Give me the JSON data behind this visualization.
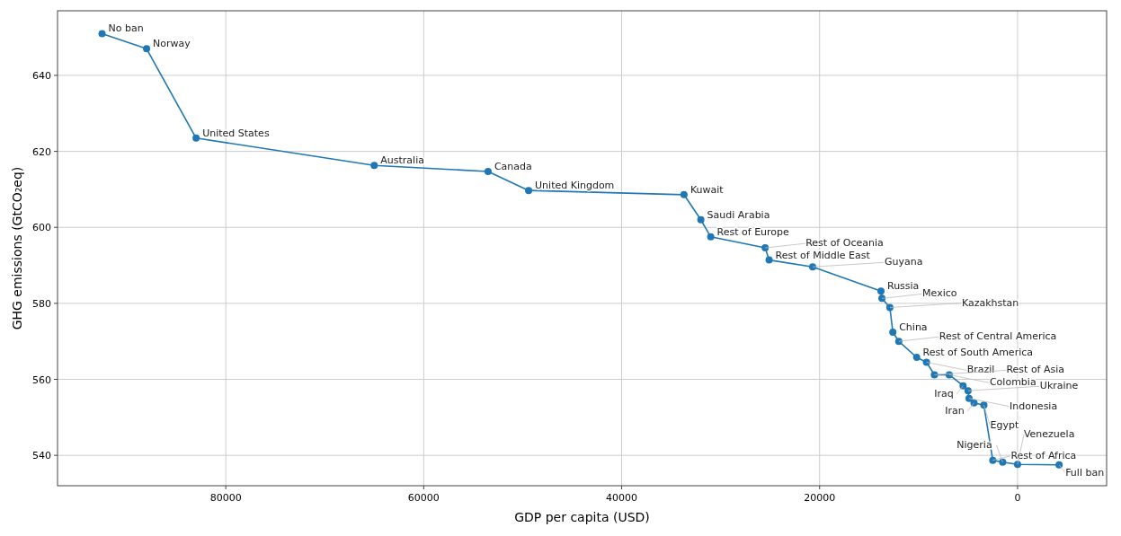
{
  "chart_data": {
    "type": "line",
    "xlabel": "GDP per capita (USD)",
    "ylabel": "GHG emissions (GtCO₂eq)",
    "xlim": [
      97000,
      -9000
    ],
    "xticks": [
      80000,
      60000,
      40000,
      20000,
      0
    ],
    "ylim": [
      532,
      657
    ],
    "yticks": [
      540,
      560,
      580,
      600,
      620,
      640
    ],
    "grid": true,
    "marker": "circle",
    "line_style": "solid",
    "series": [
      {
        "color": "#1f77b4",
        "x": [
          92500,
          88000,
          83000,
          65000,
          53500,
          49400,
          33700,
          32000,
          31000,
          25500,
          25100,
          20700,
          13800,
          13700,
          12900,
          12600,
          12000,
          10200,
          9200,
          8400,
          6900,
          5500,
          5000,
          4900,
          4400,
          3400,
          2500,
          1500,
          0,
          -4200
        ],
        "values": [
          651,
          647,
          623.5,
          616.3,
          614.7,
          609.7,
          608.6,
          602,
          597.5,
          594.6,
          591.4,
          589.6,
          583.2,
          581.3,
          578.9,
          572.4,
          570,
          565.8,
          564.5,
          561.2,
          561.2,
          558.3,
          557,
          555,
          553.8,
          553.2,
          538.7,
          538.2,
          537.6,
          537.5
        ]
      }
    ],
    "annotations": [
      {
        "text": "No ban",
        "x": 92500,
        "y": 651
      },
      {
        "text": "Norway",
        "x": 88000,
        "y": 647
      },
      {
        "text": "United States",
        "x": 83000,
        "y": 623.5
      },
      {
        "text": "Australia",
        "x": 65000,
        "y": 616.3
      },
      {
        "text": "Canada",
        "x": 53500,
        "y": 614.7
      },
      {
        "text": "United Kingdom",
        "x": 49400,
        "y": 609.7
      },
      {
        "text": "Kuwait",
        "x": 33700,
        "y": 608.6
      },
      {
        "text": "Saudi Arabia",
        "x": 32000,
        "y": 602
      },
      {
        "text": "Rest of Europe",
        "x": 31000,
        "y": 597.5
      },
      {
        "text": "Rest of Oceania",
        "x": 25500,
        "y": 594.6
      },
      {
        "text": "Rest of Middle East",
        "x": 25100,
        "y": 591.4
      },
      {
        "text": "Guyana",
        "x": 20700,
        "y": 589.6
      },
      {
        "text": "Russia",
        "x": 13800,
        "y": 583.2
      },
      {
        "text": "Mexico",
        "x": 13700,
        "y": 581.3
      },
      {
        "text": "Kazakhstan",
        "x": 12900,
        "y": 578.9
      },
      {
        "text": "China",
        "x": 12600,
        "y": 572.4
      },
      {
        "text": "Rest of Central America",
        "x": 12000,
        "y": 570
      },
      {
        "text": "Rest of South America",
        "x": 10200,
        "y": 565.8
      },
      {
        "text": "Brazil",
        "x": 9200,
        "y": 564.5
      },
      {
        "text": "Rest of Asia",
        "x": 8400,
        "y": 561.2
      },
      {
        "text": "Colombia",
        "x": 6900,
        "y": 561.2
      },
      {
        "text": "Iraq",
        "x": 5500,
        "y": 558.3
      },
      {
        "text": "Ukraine",
        "x": 5000,
        "y": 557
      },
      {
        "text": "Indonesia",
        "x": 4900,
        "y": 555
      },
      {
        "text": "Iran",
        "x": 4400,
        "y": 553.8
      },
      {
        "text": "Egypt",
        "x": 3400,
        "y": 553.2
      },
      {
        "text": "Rest of Africa",
        "x": 2500,
        "y": 538.7
      },
      {
        "text": "Nigeria",
        "x": 1500,
        "y": 538.2
      },
      {
        "text": "Venezuela",
        "x": 0,
        "y": 537.6
      },
      {
        "text": "Full ban",
        "x": -4200,
        "y": 537.5
      }
    ]
  }
}
